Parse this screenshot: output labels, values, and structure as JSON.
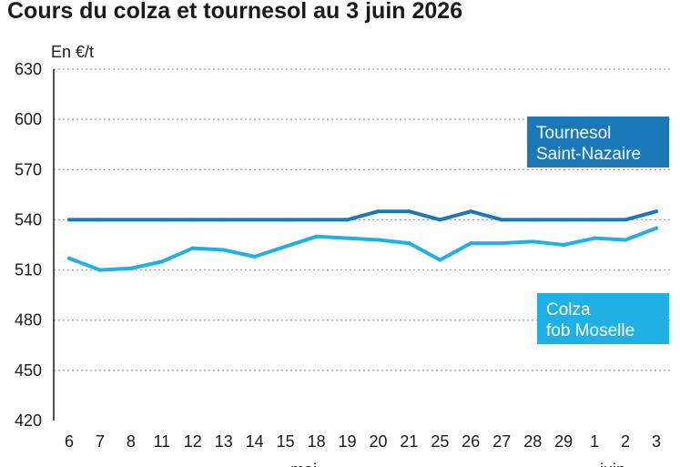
{
  "chart_data": {
    "type": "line",
    "title": "Cours du colza et tournesol au 3 juin 2026",
    "ylabel": "En €/t",
    "ylim": [
      420,
      630
    ],
    "yticks": [
      630,
      600,
      570,
      540,
      510,
      480,
      450,
      420
    ],
    "categories": [
      "6",
      "7",
      "8",
      "11",
      "12",
      "13",
      "14",
      "15",
      "18",
      "19",
      "20",
      "21",
      "25",
      "26",
      "27",
      "28",
      "29",
      "1",
      "2",
      "3"
    ],
    "month_labels": [
      {
        "label": "mai",
        "index": 8
      },
      {
        "label": "juin",
        "index": 18
      }
    ],
    "grid": "horizontal dotted",
    "series": [
      {
        "name": "Tournesol Saint-Nazaire",
        "label_lines": [
          "Tournesol",
          "Saint-Nazaire"
        ],
        "color": "#1a78b8",
        "values": [
          540,
          540,
          540,
          540,
          540,
          540,
          540,
          540,
          540,
          540,
          545,
          545,
          540,
          545,
          540,
          540,
          540,
          540,
          540,
          545
        ]
      },
      {
        "name": "Colza fob Moselle",
        "label_lines": [
          "Colza",
          "fob Moselle"
        ],
        "color": "#1fb1e6",
        "values": [
          517,
          510,
          511,
          515,
          523,
          522,
          518,
          524,
          530,
          529,
          528,
          526,
          516,
          526,
          526,
          527,
          525,
          529,
          528,
          535
        ]
      }
    ]
  }
}
